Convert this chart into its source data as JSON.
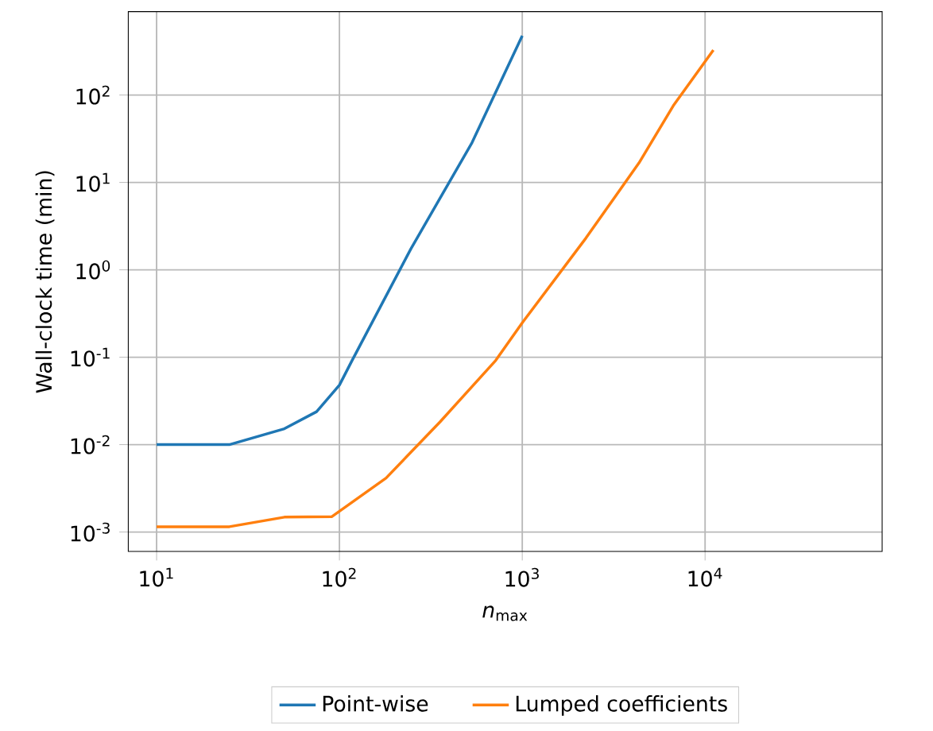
{
  "chart_data": {
    "type": "line",
    "xlabel": "*n*$_{max}$",
    "ylabel": "Wall-clock time (min)",
    "log": "xy",
    "grid": true,
    "legend": "bottom",
    "line_style": "solid",
    "marker": "none",
    "xlim": [
      7,
      93000
    ],
    "ylim": [
      0.0006,
      900
    ],
    "xticks": [
      {
        "value": 10,
        "label": "10$^{1}$"
      },
      {
        "value": 100,
        "label": "10$^{2}$"
      },
      {
        "value": 1000,
        "label": "10$^{3}$"
      },
      {
        "value": 10000,
        "label": "10$^{4}$"
      }
    ],
    "yticks": [
      {
        "value": 0.001,
        "label": "10$^{-3}$"
      },
      {
        "value": 0.01,
        "label": "10$^{-2}$"
      },
      {
        "value": 0.1,
        "label": "10$^{-1}$"
      },
      {
        "value": 1,
        "label": "10$^{0}$"
      },
      {
        "value": 10,
        "label": "10$^{1}$"
      },
      {
        "value": 100,
        "label": "10$^{2}$"
      }
    ],
    "series": [
      {
        "name": "Point-wise",
        "color": "#1f77b4",
        "x": [
          10,
          25,
          50,
          75,
          100,
          117,
          246,
          531,
          1000
        ],
        "values": [
          0.01,
          0.01,
          0.0152,
          0.0238,
          0.048,
          0.091,
          1.74,
          28.5,
          476
        ]
      },
      {
        "name": "Lumped coefficients",
        "color": "#ff7f0e",
        "x": [
          10,
          25,
          50,
          91,
          180,
          355,
          716,
          1000,
          2230,
          4350,
          6700,
          11100
        ],
        "values": [
          0.00115,
          0.00115,
          0.00148,
          0.0015,
          0.00415,
          0.0182,
          0.092,
          0.248,
          2.31,
          16.7,
          75.5,
          327
        ]
      }
    ]
  }
}
